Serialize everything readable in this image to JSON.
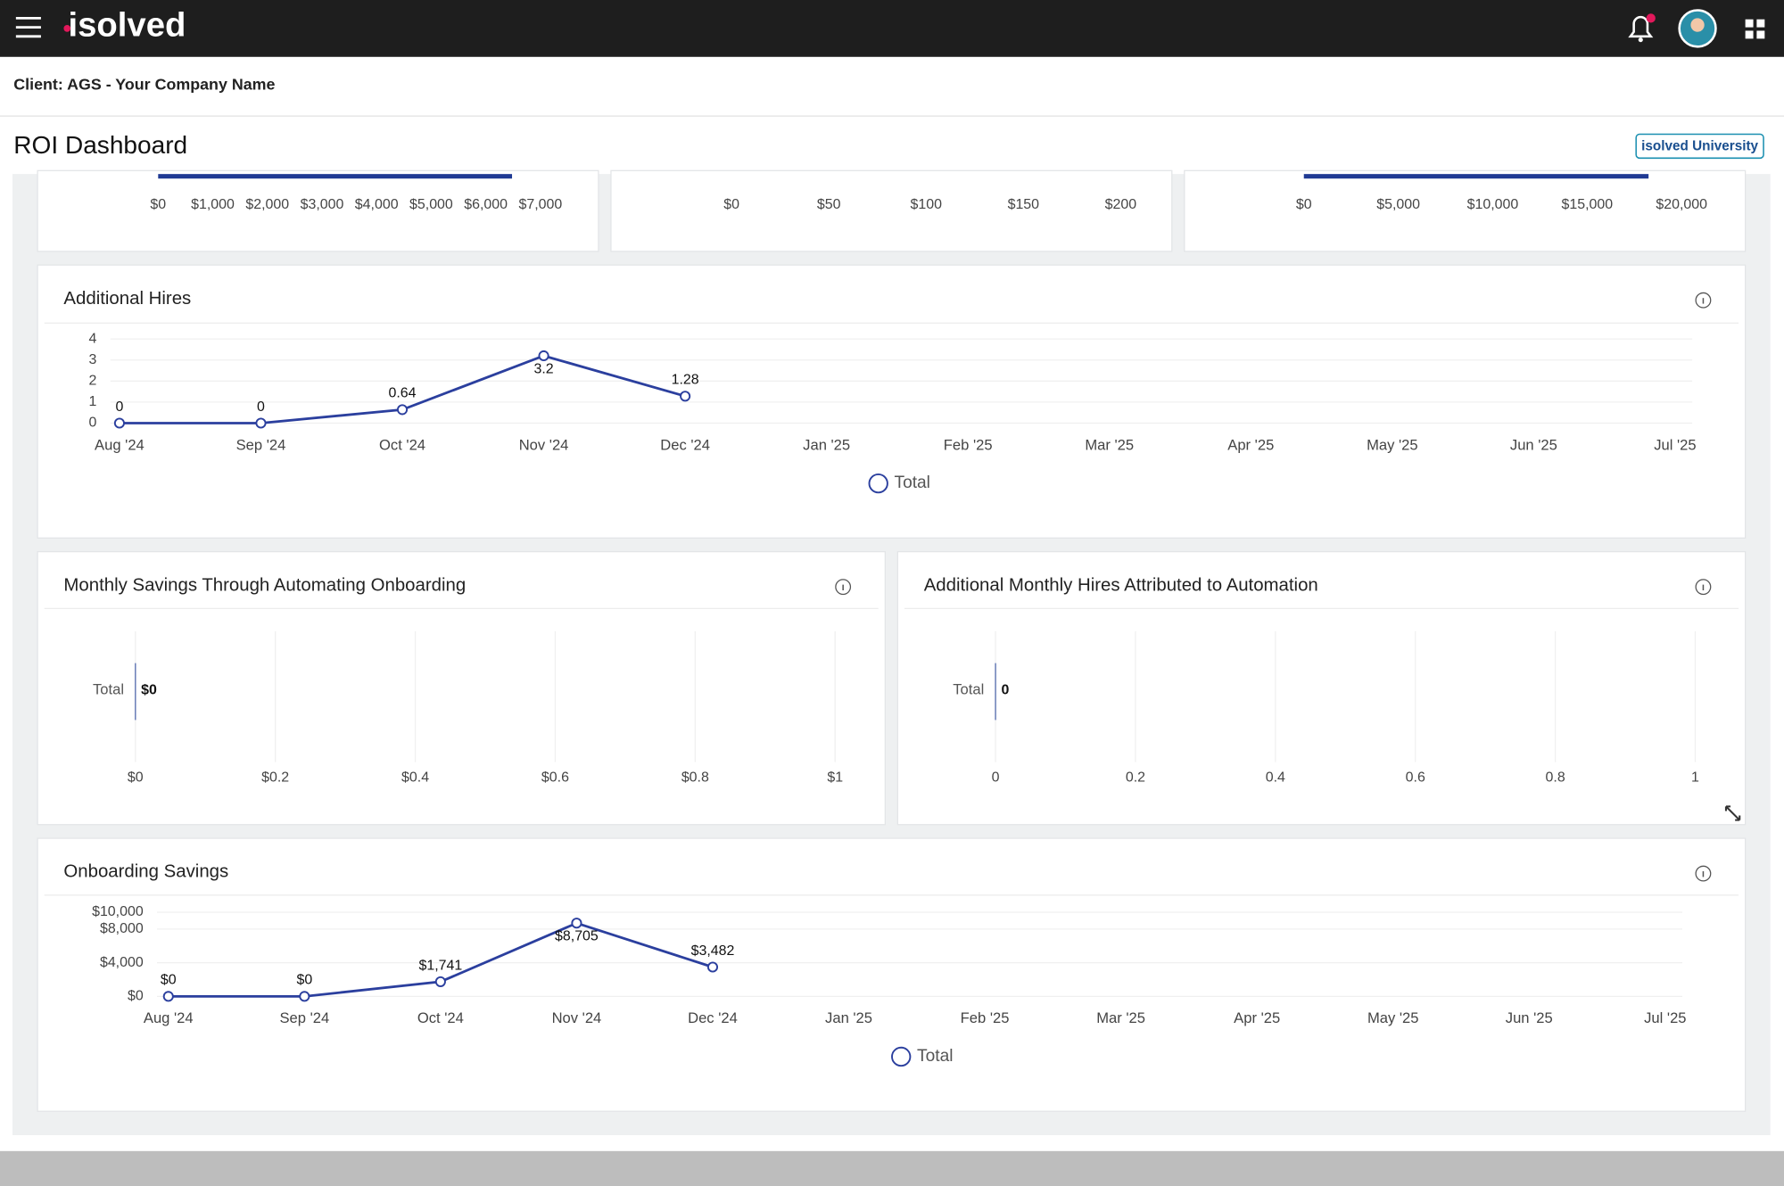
{
  "header": {
    "logo": "isolved"
  },
  "client": "Client: AGS - Your Company Name",
  "page_title": "ROI Dashboard",
  "university_button": "isolved University",
  "chart_data": [
    {
      "type": "hbar",
      "values": [
        6480
      ],
      "color": "#1f3a93",
      "xlim": [
        0,
        7000
      ],
      "xticks": [
        {
          "value": 0,
          "label": "$0"
        },
        {
          "value": 1000,
          "label": "$1,000"
        },
        {
          "value": 2000,
          "label": "$2,000"
        },
        {
          "value": 3000,
          "label": "$3,000"
        },
        {
          "value": 4000,
          "label": "$4,000"
        },
        {
          "value": 5000,
          "label": "$5,000"
        },
        {
          "value": 6000,
          "label": "$6,000"
        },
        {
          "value": 7000,
          "label": "$7,000"
        }
      ]
    },
    {
      "type": "hbar",
      "color": "#1f3a93",
      "xlim": [
        0,
        200
      ],
      "xticks": [
        {
          "value": 0,
          "label": "$0"
        },
        {
          "value": 50,
          "label": "$50"
        },
        {
          "value": 100,
          "label": "$100"
        },
        {
          "value": 150,
          "label": "$150"
        },
        {
          "value": 200,
          "label": "$200"
        }
      ]
    },
    {
      "type": "hbar",
      "values": [
        18250
      ],
      "color": "#1f3a93",
      "xlim": [
        0,
        20000
      ],
      "xticks": [
        {
          "value": 0,
          "label": "$0"
        },
        {
          "value": 5000,
          "label": "$5,000"
        },
        {
          "value": 10000,
          "label": "$10,000"
        },
        {
          "value": 15000,
          "label": "$15,000"
        },
        {
          "value": 20000,
          "label": "$20,000"
        }
      ]
    },
    {
      "type": "line",
      "title": "Additional Hires",
      "categories": [
        "Aug '24",
        "Sep '24",
        "Oct '24",
        "Nov '24",
        "Dec '24",
        "Jan '25",
        "Feb '25",
        "Mar '25",
        "Apr '25",
        "May '25",
        "Jun '25",
        "Jul '25"
      ],
      "series": [
        {
          "name": "Total",
          "color": "#2b3f9e",
          "values": [
            0,
            0,
            0.64,
            3.2,
            1.28,
            null,
            null,
            null,
            null,
            null,
            null,
            null
          ]
        }
      ],
      "ylim": [
        0,
        4
      ],
      "yticks": [
        0,
        1,
        2,
        3,
        4
      ],
      "grid": true
    },
    {
      "type": "hbar",
      "title": "Monthly Savings Through Automating Onboarding",
      "categories": [
        "Total"
      ],
      "values": [
        0
      ],
      "value_labels": [
        "$0"
      ],
      "color": "#2b3f9e",
      "xlim": [
        0,
        1
      ],
      "xticks": [
        {
          "value": 0,
          "label": "$0"
        },
        {
          "value": 0.2,
          "label": "$0.2"
        },
        {
          "value": 0.4,
          "label": "$0.4"
        },
        {
          "value": 0.6,
          "label": "$0.6"
        },
        {
          "value": 0.8,
          "label": "$0.8"
        },
        {
          "value": 1,
          "label": "$1"
        }
      ],
      "grid": true
    },
    {
      "type": "hbar",
      "title": "Additional Monthly Hires Attributed to Automation",
      "categories": [
        "Total"
      ],
      "values": [
        0
      ],
      "color": "#2b3f9e",
      "xlim": [
        0,
        1
      ],
      "xticks": [
        0,
        0.2,
        0.4,
        0.6,
        0.8,
        1
      ],
      "grid": true
    },
    {
      "type": "line",
      "title": "Onboarding Savings",
      "categories": [
        "Aug '24",
        "Sep '24",
        "Oct '24",
        "Nov '24",
        "Dec '24",
        "Jan '25",
        "Feb '25",
        "Mar '25",
        "Apr '25",
        "May '25",
        "Jun '25",
        "Jul '25"
      ],
      "series": [
        {
          "name": "Total",
          "color": "#2b3f9e",
          "values": [
            0,
            0,
            1741,
            8705,
            3482,
            null,
            null,
            null,
            null,
            null,
            null,
            null
          ],
          "value_labels": [
            "$0",
            "$0",
            "$1,741",
            "$8,705",
            "$3,482",
            null,
            null,
            null,
            null,
            null,
            null,
            null
          ]
        }
      ],
      "ylim": [
        0,
        10000
      ],
      "yticks": [
        {
          "value": 0,
          "label": "$0"
        },
        {
          "value": 4000,
          "label": "$4,000"
        },
        {
          "value": 8000,
          "label": "$8,000"
        },
        {
          "value": 10000,
          "label": "$10,000"
        }
      ],
      "grid": true
    }
  ]
}
